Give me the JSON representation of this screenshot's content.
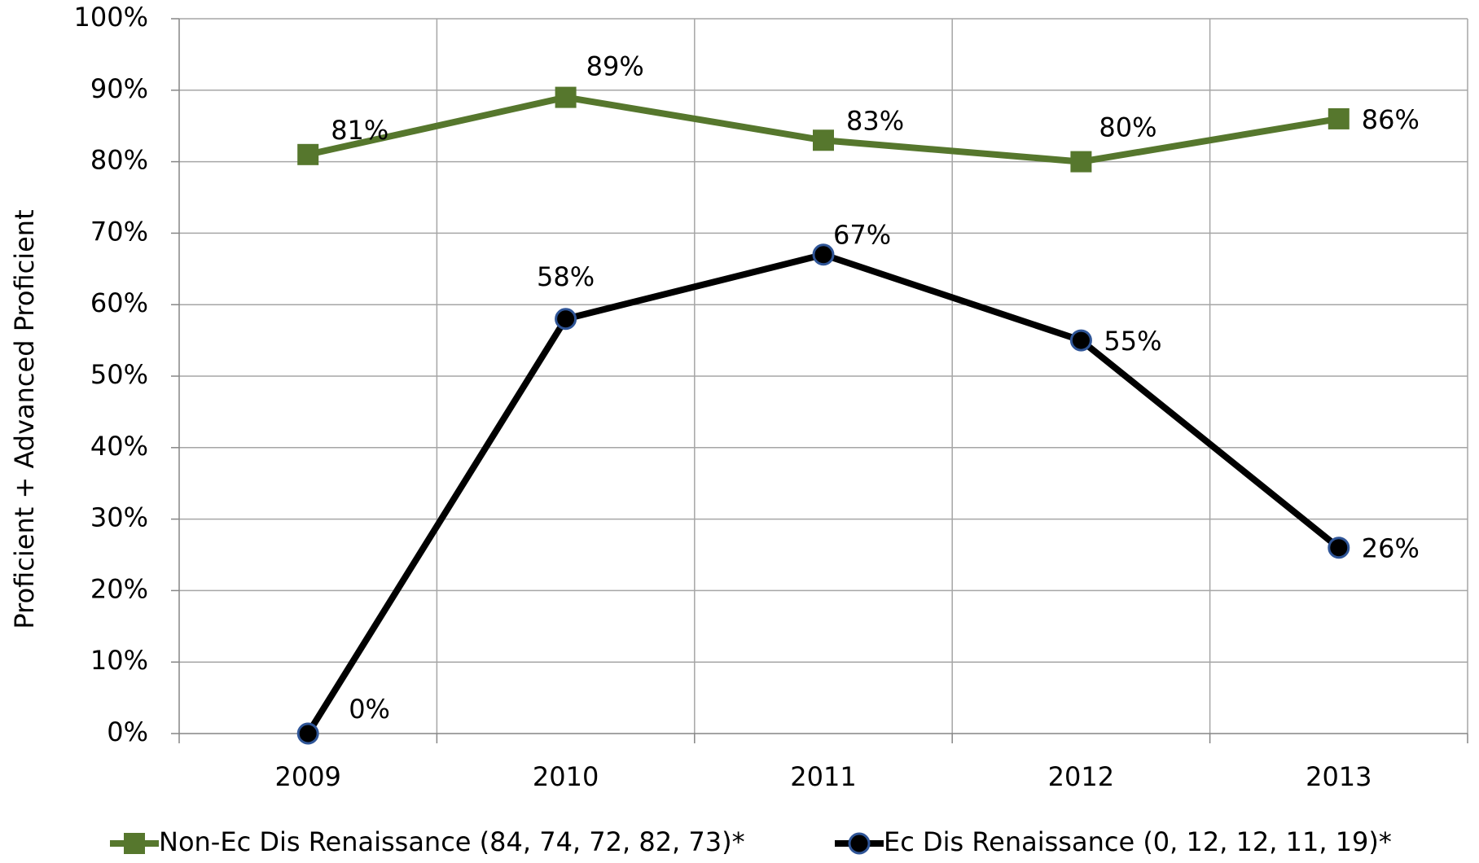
{
  "chart_data": {
    "type": "line",
    "y_label": "Proficient + Advanced Proficient",
    "categories": [
      "2009",
      "2010",
      "2011",
      "2012",
      "2013"
    ],
    "series": [
      {
        "name": "Non-Ec Dis Renaissance (84, 74, 72, 82, 73)*",
        "color": "#56772d",
        "marker": "square",
        "values": [
          81,
          89,
          83,
          80,
          86
        ],
        "value_labels": [
          "81%",
          "89%",
          "83%",
          "80%",
          "86%"
        ]
      },
      {
        "name": "Ec Dis Renaissance (0, 12, 12, 11, 19)*",
        "color": "#000000",
        "marker": "circle",
        "values": [
          0,
          58,
          67,
          55,
          26
        ],
        "value_labels": [
          "0%",
          "58%",
          "67%",
          "55%",
          "26%"
        ]
      }
    ],
    "ylim": [
      0,
      100
    ],
    "yticks": [
      {
        "value": 0,
        "label": "0%"
      },
      {
        "value": 10,
        "label": "10%"
      },
      {
        "value": 20,
        "label": "20%"
      },
      {
        "value": 30,
        "label": "30%"
      },
      {
        "value": 40,
        "label": "40%"
      },
      {
        "value": 50,
        "label": "50%"
      },
      {
        "value": 60,
        "label": "60%"
      },
      {
        "value": 70,
        "label": "70%"
      },
      {
        "value": 80,
        "label": "80%"
      },
      {
        "value": 90,
        "label": "90%"
      },
      {
        "value": 100,
        "label": "100%"
      }
    ],
    "grid": true,
    "legend": "bottom"
  }
}
